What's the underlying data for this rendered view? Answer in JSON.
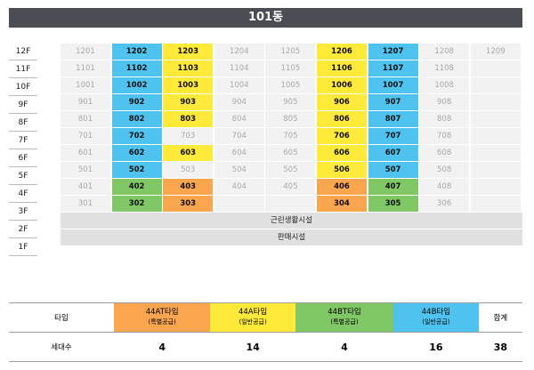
{
  "building": {
    "title": "101동"
  },
  "floors": [
    "12F",
    "11F",
    "10F",
    "9F",
    "8F",
    "7F",
    "6F",
    "5F",
    "4F",
    "3F",
    "2F",
    "1F"
  ],
  "colors": {
    "blue": "#4fc3f0",
    "yellow": "#ffea3a",
    "green": "#80c865",
    "orange": "#f9a64f",
    "gray": "#f2f2f2"
  },
  "units": [
    [
      {
        "t": "1201",
        "c": "gray"
      },
      {
        "t": "1202",
        "c": "blue"
      },
      {
        "t": "1203",
        "c": "yellow"
      },
      {
        "t": "1204",
        "c": "gray"
      },
      {
        "t": "1205",
        "c": "gray"
      },
      {
        "t": "1206",
        "c": "yellow"
      },
      {
        "t": "1207",
        "c": "blue"
      },
      {
        "t": "1208",
        "c": "gray"
      },
      {
        "t": "1209",
        "c": "gray"
      }
    ],
    [
      {
        "t": "1101",
        "c": "gray"
      },
      {
        "t": "1102",
        "c": "blue"
      },
      {
        "t": "1103",
        "c": "yellow"
      },
      {
        "t": "1104",
        "c": "gray"
      },
      {
        "t": "1105",
        "c": "gray"
      },
      {
        "t": "1106",
        "c": "yellow"
      },
      {
        "t": "1107",
        "c": "blue"
      },
      {
        "t": "1108",
        "c": "gray"
      },
      {
        "t": "",
        "c": "empty"
      }
    ],
    [
      {
        "t": "1001",
        "c": "gray"
      },
      {
        "t": "1002",
        "c": "blue"
      },
      {
        "t": "1003",
        "c": "yellow"
      },
      {
        "t": "1004",
        "c": "gray"
      },
      {
        "t": "1005",
        "c": "gray"
      },
      {
        "t": "1006",
        "c": "yellow"
      },
      {
        "t": "1007",
        "c": "blue"
      },
      {
        "t": "1008",
        "c": "gray"
      },
      {
        "t": "",
        "c": "empty"
      }
    ],
    [
      {
        "t": "901",
        "c": "gray"
      },
      {
        "t": "902",
        "c": "blue"
      },
      {
        "t": "903",
        "c": "yellow"
      },
      {
        "t": "904",
        "c": "gray"
      },
      {
        "t": "905",
        "c": "gray"
      },
      {
        "t": "906",
        "c": "yellow"
      },
      {
        "t": "907",
        "c": "blue"
      },
      {
        "t": "908",
        "c": "gray"
      },
      {
        "t": "",
        "c": "empty"
      }
    ],
    [
      {
        "t": "801",
        "c": "gray"
      },
      {
        "t": "802",
        "c": "blue"
      },
      {
        "t": "803",
        "c": "yellow"
      },
      {
        "t": "804",
        "c": "gray"
      },
      {
        "t": "805",
        "c": "gray"
      },
      {
        "t": "806",
        "c": "yellow"
      },
      {
        "t": "807",
        "c": "blue"
      },
      {
        "t": "808",
        "c": "gray"
      },
      {
        "t": "",
        "c": "empty"
      }
    ],
    [
      {
        "t": "701",
        "c": "gray"
      },
      {
        "t": "702",
        "c": "blue"
      },
      {
        "t": "703",
        "c": "gray"
      },
      {
        "t": "704",
        "c": "gray"
      },
      {
        "t": "705",
        "c": "gray"
      },
      {
        "t": "706",
        "c": "yellow"
      },
      {
        "t": "707",
        "c": "blue"
      },
      {
        "t": "708",
        "c": "gray"
      },
      {
        "t": "",
        "c": "empty"
      }
    ],
    [
      {
        "t": "601",
        "c": "gray"
      },
      {
        "t": "602",
        "c": "blue"
      },
      {
        "t": "603",
        "c": "yellow"
      },
      {
        "t": "604",
        "c": "gray"
      },
      {
        "t": "605",
        "c": "gray"
      },
      {
        "t": "606",
        "c": "yellow"
      },
      {
        "t": "607",
        "c": "blue"
      },
      {
        "t": "608",
        "c": "gray"
      },
      {
        "t": "",
        "c": "empty"
      }
    ],
    [
      {
        "t": "501",
        "c": "gray"
      },
      {
        "t": "502",
        "c": "blue"
      },
      {
        "t": "503",
        "c": "gray"
      },
      {
        "t": "504",
        "c": "gray"
      },
      {
        "t": "505",
        "c": "gray"
      },
      {
        "t": "506",
        "c": "yellow"
      },
      {
        "t": "507",
        "c": "blue"
      },
      {
        "t": "508",
        "c": "gray"
      },
      {
        "t": "",
        "c": "empty"
      }
    ],
    [
      {
        "t": "401",
        "c": "gray"
      },
      {
        "t": "402",
        "c": "green"
      },
      {
        "t": "403",
        "c": "orange"
      },
      {
        "t": "404",
        "c": "gray"
      },
      {
        "t": "405",
        "c": "gray"
      },
      {
        "t": "406",
        "c": "orange"
      },
      {
        "t": "407",
        "c": "green"
      },
      {
        "t": "408",
        "c": "gray"
      },
      {
        "t": "",
        "c": "empty"
      }
    ],
    [
      {
        "t": "301",
        "c": "gray"
      },
      {
        "t": "302",
        "c": "green"
      },
      {
        "t": "303",
        "c": "orange"
      },
      {
        "t": "",
        "c": "empty"
      },
      {
        "t": "",
        "c": "empty"
      },
      {
        "t": "304",
        "c": "orange"
      },
      {
        "t": "305",
        "c": "green"
      },
      {
        "t": "306",
        "c": "gray"
      },
      {
        "t": "",
        "c": "empty"
      }
    ]
  ],
  "floor2_label": "근린생활시설",
  "floor1_label": "판매시설",
  "summary": {
    "row1_label": "타입",
    "row2_label": "세대수",
    "types": [
      {
        "name": "44AT타입",
        "sub": "(특별공급)",
        "count": "4",
        "color": "#f9a64f"
      },
      {
        "name": "44A타입",
        "sub": "(일반공급)",
        "count": "14",
        "color": "#ffea3a"
      },
      {
        "name": "44BT타입",
        "sub": "(특별공급)",
        "count": "4",
        "color": "#80c865"
      },
      {
        "name": "44B타입",
        "sub": "(일반공급)",
        "count": "16",
        "color": "#4fc3f0"
      }
    ],
    "total_label": "합계",
    "total_count": "38"
  }
}
